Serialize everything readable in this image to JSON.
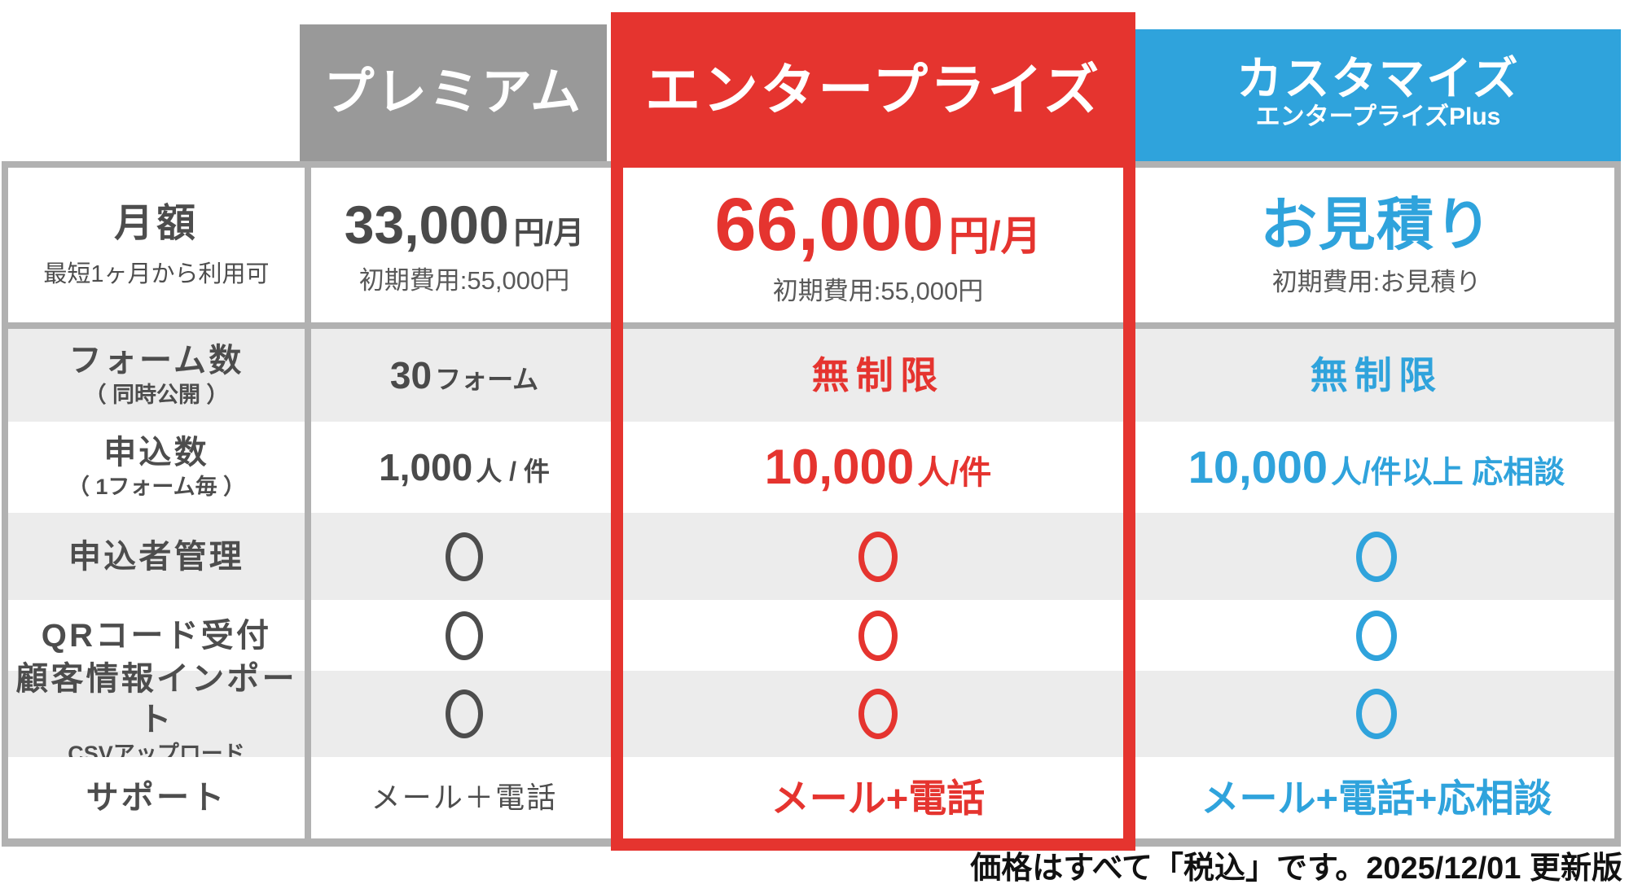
{
  "colors": {
    "premium_header": "#999999",
    "enterprise_accent": "#e5342f",
    "customize_accent": "#2fa3dc",
    "stripe_row": "#ececec",
    "table_border": "#b1b1b1",
    "text_dark": "#4d4d4d"
  },
  "plans": {
    "premium": {
      "name": "プレミアム"
    },
    "enterprise": {
      "name": "エンタープライズ"
    },
    "customize": {
      "name": "カスタマイズ",
      "subtitle": "エンタープライズPlus"
    }
  },
  "price_row": {
    "label": "月額",
    "sublabel": "最短1ヶ月から利用可",
    "premium": {
      "amount": "33,000",
      "unit": "円/月",
      "setup": "初期費用:55,000円"
    },
    "enterprise": {
      "amount": "66,000",
      "unit": "円/月",
      "setup": "初期費用:55,000円"
    },
    "customize": {
      "amount": "お見積り",
      "setup": "初期費用:お見積り"
    }
  },
  "rows": {
    "forms": {
      "label": "フォーム数",
      "sublabel": "（ 同時公開 ）",
      "premium_num": "30",
      "premium_unit": "フォーム",
      "enterprise": "無制限",
      "customize": "無制限"
    },
    "applications": {
      "label": "申込数",
      "sublabel": "（ 1フォーム毎 ）",
      "premium_num": "1,000",
      "premium_unit": "人 / 件",
      "enterprise_num": "10,000",
      "enterprise_unit": "人/件",
      "customize_num": "10,000",
      "customize_unit": "人/件以上 応相談"
    },
    "management": {
      "label": "申込者管理",
      "premium": "○",
      "enterprise": "○",
      "customize": "○"
    },
    "qr": {
      "label": "QRコード受付",
      "premium": "○",
      "enterprise": "○",
      "customize": "○"
    },
    "import": {
      "label": "顧客情報インポート",
      "sublabel": "CSVアップロード",
      "premium": "○",
      "enterprise": "○",
      "customize": "○"
    },
    "support": {
      "label": "サポート",
      "premium": "メール＋電話",
      "enterprise": "メール+電話",
      "customize": "メール+電話+応相談"
    }
  },
  "footer": {
    "note": "価格はすべて「税込」です。2025/12/01 更新版"
  }
}
